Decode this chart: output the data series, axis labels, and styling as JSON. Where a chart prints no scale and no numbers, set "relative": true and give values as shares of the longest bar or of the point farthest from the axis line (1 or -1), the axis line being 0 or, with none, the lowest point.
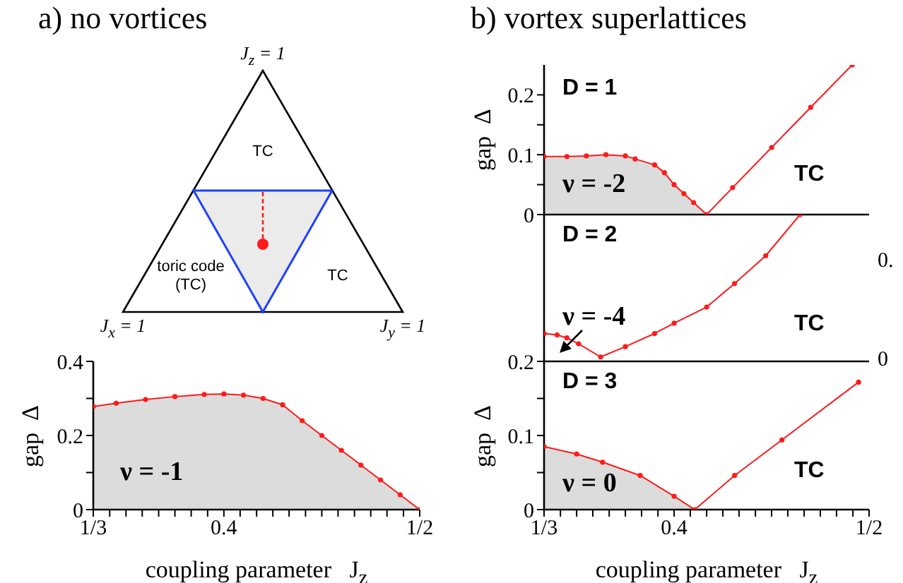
{
  "chart_data": [
    {
      "type": "other",
      "title": "a) no vortices",
      "annotations": [
        "J$_{z}$ = 1",
        "TC",
        "toric code (TC)",
        "TC",
        "J$_{x}$ = 1",
        "J$_{y}$ = 1"
      ]
    },
    {
      "type": "line",
      "xlabel": "coupling parameter   J$_{z}$",
      "ylabel": "gap  Δ",
      "xlim": [
        0.3333,
        0.5
      ],
      "xticks": [
        {
          "value": 0.3333,
          "label": "1/3"
        },
        {
          "value": 0.3417,
          "label": null
        },
        {
          "value": 0.35,
          "label": null
        },
        {
          "value": 0.3583,
          "label": null
        },
        {
          "value": 0.3667,
          "label": null
        },
        {
          "value": 0.375,
          "label": null
        },
        {
          "value": 0.3833,
          "label": null
        },
        {
          "value": 0.3917,
          "label": null
        },
        0.4,
        {
          "value": 0.4083,
          "label": null
        },
        {
          "value": 0.4167,
          "label": null
        },
        {
          "value": 0.425,
          "label": null
        },
        {
          "value": 0.4333,
          "label": null
        },
        {
          "value": 0.4417,
          "label": null
        },
        {
          "value": 0.45,
          "label": null
        },
        {
          "value": 0.4583,
          "label": null
        },
        {
          "value": 0.4667,
          "label": null
        },
        {
          "value": 0.475,
          "label": null
        },
        {
          "value": 0.4833,
          "label": null
        },
        {
          "value": 0.4917,
          "label": null
        },
        {
          "value": 0.5,
          "label": "1/2"
        }
      ],
      "ylim": [
        0,
        0.4
      ],
      "yticks": [
        0,
        {
          "value": 0.1,
          "label": null
        },
        0.2,
        {
          "value": 0.3,
          "label": null
        },
        0.4
      ],
      "annotations": [
        "ν = -1"
      ],
      "series": [
        {
          "type": "area",
          "marker": "circle",
          "color": "#ff1a1a",
          "x": [
            0.3333,
            0.345,
            0.36,
            0.375,
            0.39,
            0.4,
            0.41,
            0.42,
            0.43,
            0.44,
            0.45,
            0.46,
            0.47,
            0.48,
            0.49,
            0.5
          ],
          "values": [
            0.278,
            0.287,
            0.297,
            0.305,
            0.311,
            0.312,
            0.309,
            0.3,
            0.283,
            0.24,
            0.2,
            0.16,
            0.12,
            0.08,
            0.04,
            0
          ]
        }
      ]
    },
    {
      "type": "line",
      "title": "b) vortex superlattices",
      "ylabel": "gap  Δ",
      "xlim": [
        0.3333,
        0.5
      ],
      "ylim": [
        0,
        0.25
      ],
      "yticks": [
        0,
        {
          "value": 0.05,
          "label": null
        },
        0.1,
        {
          "value": 0.15,
          "label": null
        },
        0.2
      ],
      "tick_labels": "y",
      "annotations": [
        "D = 1",
        "ν = -2",
        "TC"
      ],
      "series": [
        {
          "type": "area",
          "color": "#dcdcdc",
          "x": [
            0.3333,
            0.345,
            0.355,
            0.365,
            0.375,
            0.38,
            0.39,
            0.395,
            0.4,
            0.405,
            0.41,
            0.4167
          ],
          "values": [
            0.097,
            0.097,
            0.098,
            0.1,
            0.098,
            0.093,
            0.083,
            0.07,
            0.05,
            0.035,
            0.02,
            0
          ]
        },
        {
          "type": "line",
          "marker": "circle",
          "color": "#ff1a1a",
          "x": [
            0.3333,
            0.345,
            0.355,
            0.365,
            0.375,
            0.38,
            0.39,
            0.395,
            0.4,
            0.405,
            0.41,
            0.4167,
            0.43,
            0.45,
            0.47,
            0.4913
          ],
          "values": [
            0.097,
            0.097,
            0.098,
            0.1,
            0.098,
            0.093,
            0.083,
            0.07,
            0.05,
            0.035,
            0.02,
            0,
            0.045,
            0.112,
            0.179,
            0.25
          ]
        }
      ]
    },
    {
      "type": "line",
      "relative": true,
      "xlim": [
        0.3333,
        0.5
      ],
      "tick_labels": false,
      "annotations": [
        "D = 2",
        "ν = -4",
        "TC",
        "0.",
        "0"
      ],
      "series": [
        {
          "type": "line",
          "marker": "circle",
          "color": "#ff1a1a",
          "x": [
            0.3333,
            0.34,
            0.345,
            0.351,
            0.3623,
            0.375,
            0.39,
            0.4,
            0.4167,
            0.431,
            0.447,
            0.4646
          ],
          "values": [
            0.19,
            0.18,
            0.16,
            0.12,
            0.03,
            0.1,
            0.19,
            0.26,
            0.37,
            0.53,
            0.72,
            1
          ]
        }
      ]
    },
    {
      "type": "line",
      "xlabel": "coupling parameter   J$_{z}$",
      "ylabel": "gap  Δ",
      "xlim": [
        0.3333,
        0.5
      ],
      "xticks": [
        {
          "value": 0.3333,
          "label": "1/3"
        },
        {
          "value": 0.3417,
          "label": null
        },
        {
          "value": 0.35,
          "label": null
        },
        {
          "value": 0.3583,
          "label": null
        },
        {
          "value": 0.3667,
          "label": null
        },
        {
          "value": 0.375,
          "label": null
        },
        {
          "value": 0.3833,
          "label": null
        },
        {
          "value": 0.3917,
          "label": null
        },
        0.4,
        {
          "value": 0.4083,
          "label": null
        },
        {
          "value": 0.4167,
          "label": null
        },
        {
          "value": 0.425,
          "label": null
        },
        {
          "value": 0.4333,
          "label": null
        },
        {
          "value": 0.4417,
          "label": null
        },
        {
          "value": 0.45,
          "label": null
        },
        {
          "value": 0.4583,
          "label": null
        },
        {
          "value": 0.4667,
          "label": null
        },
        {
          "value": 0.475,
          "label": null
        },
        {
          "value": 0.4833,
          "label": null
        },
        {
          "value": 0.4917,
          "label": null
        },
        {
          "value": 0.5,
          "label": "1/2"
        }
      ],
      "ylim": [
        0,
        0.2
      ],
      "yticks": [
        0,
        {
          "value": 0.05,
          "label": null
        },
        0.1,
        {
          "value": 0.15,
          "label": null
        },
        0.2
      ],
      "annotations": [
        "D = 3",
        "ν = 0",
        "TC"
      ],
      "series": [
        {
          "type": "area",
          "color": "#dcdcdc",
          "x": [
            0.3333,
            0.35,
            0.3633,
            0.3826,
            0.4,
            0.4106
          ],
          "values": [
            0.085,
            0.075,
            0.064,
            0.046,
            0.018,
            0
          ]
        },
        {
          "type": "line",
          "marker": "circle",
          "color": "#ff1a1a",
          "x": [
            0.3333,
            0.35,
            0.3633,
            0.3826,
            0.4,
            0.4106,
            0.431,
            0.4553,
            0.4946
          ],
          "values": [
            0.085,
            0.075,
            0.064,
            0.046,
            0.018,
            0,
            0.046,
            0.094,
            0.172
          ]
        }
      ]
    }
  ]
}
